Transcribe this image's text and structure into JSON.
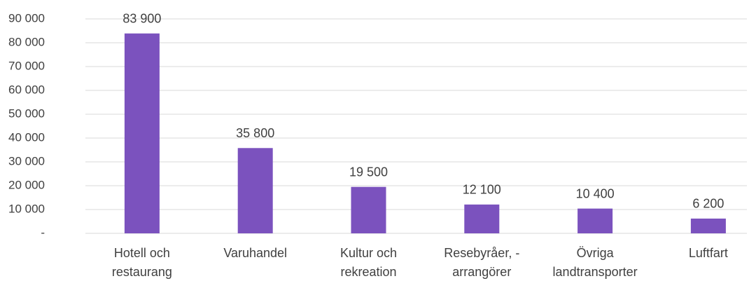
{
  "chart_data": {
    "type": "bar",
    "categories": [
      "Hotell och restaurang",
      "Varuhandel",
      "Kultur och rekreation",
      "Resebyråer, - arrangörer",
      "Övriga landtransporter",
      "Luftfart"
    ],
    "values": [
      83900,
      35800,
      19500,
      12100,
      10400,
      6200
    ],
    "value_labels": [
      "83 900",
      "35 800",
      "19 500",
      "12 100",
      "10 400",
      "6 200"
    ],
    "color": "#7b52be",
    "ylim": [
      0,
      90000
    ],
    "yticks": [
      {
        "value": 0,
        "label": "-"
      },
      {
        "value": 10000,
        "label": "10 000"
      },
      {
        "value": 20000,
        "label": "20 000"
      },
      {
        "value": 30000,
        "label": "30 000"
      },
      {
        "value": 40000,
        "label": "40 000"
      },
      {
        "value": 50000,
        "label": "50 000"
      },
      {
        "value": 60000,
        "label": "60 000"
      },
      {
        "value": 70000,
        "label": "70 000"
      },
      {
        "value": 80000,
        "label": "80 000"
      },
      {
        "value": 90000,
        "label": "90 000"
      }
    ],
    "grid": true
  }
}
